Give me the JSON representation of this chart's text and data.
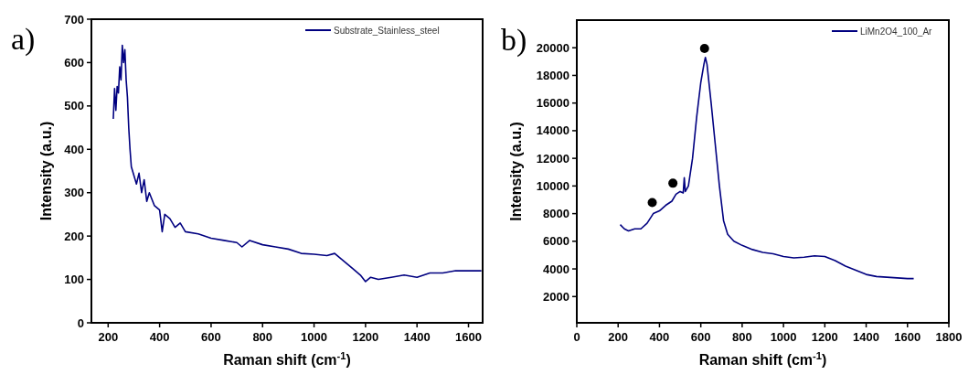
{
  "chart_data": [
    {
      "type": "line",
      "title": "a)",
      "xlabel": "Raman shift (cm$^{-1}$)",
      "ylabel": "Intensity (a.u.)",
      "xlim": [
        135,
        1655
      ],
      "ylim": [
        0,
        700
      ],
      "xticks": [
        200,
        400,
        600,
        800,
        1000,
        1200,
        1400,
        1600
      ],
      "yticks": [
        0,
        100,
        200,
        300,
        400,
        500,
        600,
        700
      ],
      "legend": "top right",
      "grid": false,
      "series": [
        {
          "name": "Substrate_Stainless_steel",
          "color": "#000080",
          "x": [
            220,
            225,
            230,
            235,
            240,
            245,
            250,
            255,
            260,
            265,
            270,
            275,
            280,
            285,
            290,
            300,
            310,
            320,
            330,
            340,
            350,
            360,
            380,
            400,
            410,
            420,
            440,
            460,
            480,
            500,
            550,
            600,
            650,
            700,
            720,
            750,
            800,
            850,
            900,
            950,
            1000,
            1050,
            1080,
            1100,
            1150,
            1180,
            1200,
            1220,
            1250,
            1300,
            1350,
            1400,
            1450,
            1500,
            1550,
            1600,
            1650
          ],
          "values": [
            470,
            540,
            490,
            545,
            530,
            590,
            560,
            640,
            600,
            630,
            560,
            520,
            450,
            400,
            360,
            340,
            320,
            345,
            300,
            330,
            280,
            300,
            270,
            260,
            210,
            250,
            240,
            220,
            230,
            210,
            205,
            195,
            190,
            185,
            175,
            190,
            180,
            175,
            170,
            160,
            158,
            155,
            160,
            150,
            125,
            110,
            95,
            105,
            100,
            105,
            110,
            105,
            115,
            115,
            120,
            120,
            120
          ]
        }
      ]
    },
    {
      "type": "line",
      "title": "b)",
      "xlabel": "Raman shift (cm$^{-1}$)",
      "ylabel": "Intensity (a.u.)",
      "xlim": [
        0,
        1800
      ],
      "ylim": [
        100,
        22000
      ],
      "xticks": [
        0,
        200,
        400,
        600,
        800,
        1000,
        1200,
        1400,
        1600,
        1800
      ],
      "yticks": [
        2000,
        4000,
        6000,
        8000,
        10000,
        12000,
        14000,
        16000,
        18000,
        20000
      ],
      "legend": "top right",
      "grid": false,
      "series": [
        {
          "name": "LiMn2O4_100_Ar",
          "color": "#000080",
          "x": [
            210,
            230,
            250,
            280,
            310,
            340,
            370,
            400,
            430,
            460,
            480,
            500,
            515,
            520,
            525,
            540,
            560,
            580,
            600,
            615,
            622,
            630,
            650,
            670,
            690,
            710,
            730,
            760,
            800,
            850,
            900,
            950,
            1000,
            1050,
            1100,
            1150,
            1200,
            1250,
            1300,
            1350,
            1400,
            1450,
            1500,
            1550,
            1600,
            1630
          ],
          "values": [
            7200,
            6900,
            6750,
            6900,
            6900,
            7300,
            8000,
            8200,
            8600,
            8900,
            9400,
            9600,
            9500,
            10600,
            9600,
            10000,
            12000,
            15000,
            17500,
            18800,
            19300,
            18800,
            16000,
            13000,
            10000,
            7500,
            6500,
            6000,
            5700,
            5400,
            5200,
            5100,
            4900,
            4800,
            4850,
            4950,
            4900,
            4600,
            4200,
            3900,
            3600,
            3450,
            3400,
            3350,
            3300,
            3300
          ]
        },
        {
          "type": "scatter",
          "color": "#000000",
          "marker": "circle",
          "x": [
            365,
            465,
            618
          ],
          "values": [
            8800,
            10200,
            19950
          ]
        }
      ]
    }
  ]
}
